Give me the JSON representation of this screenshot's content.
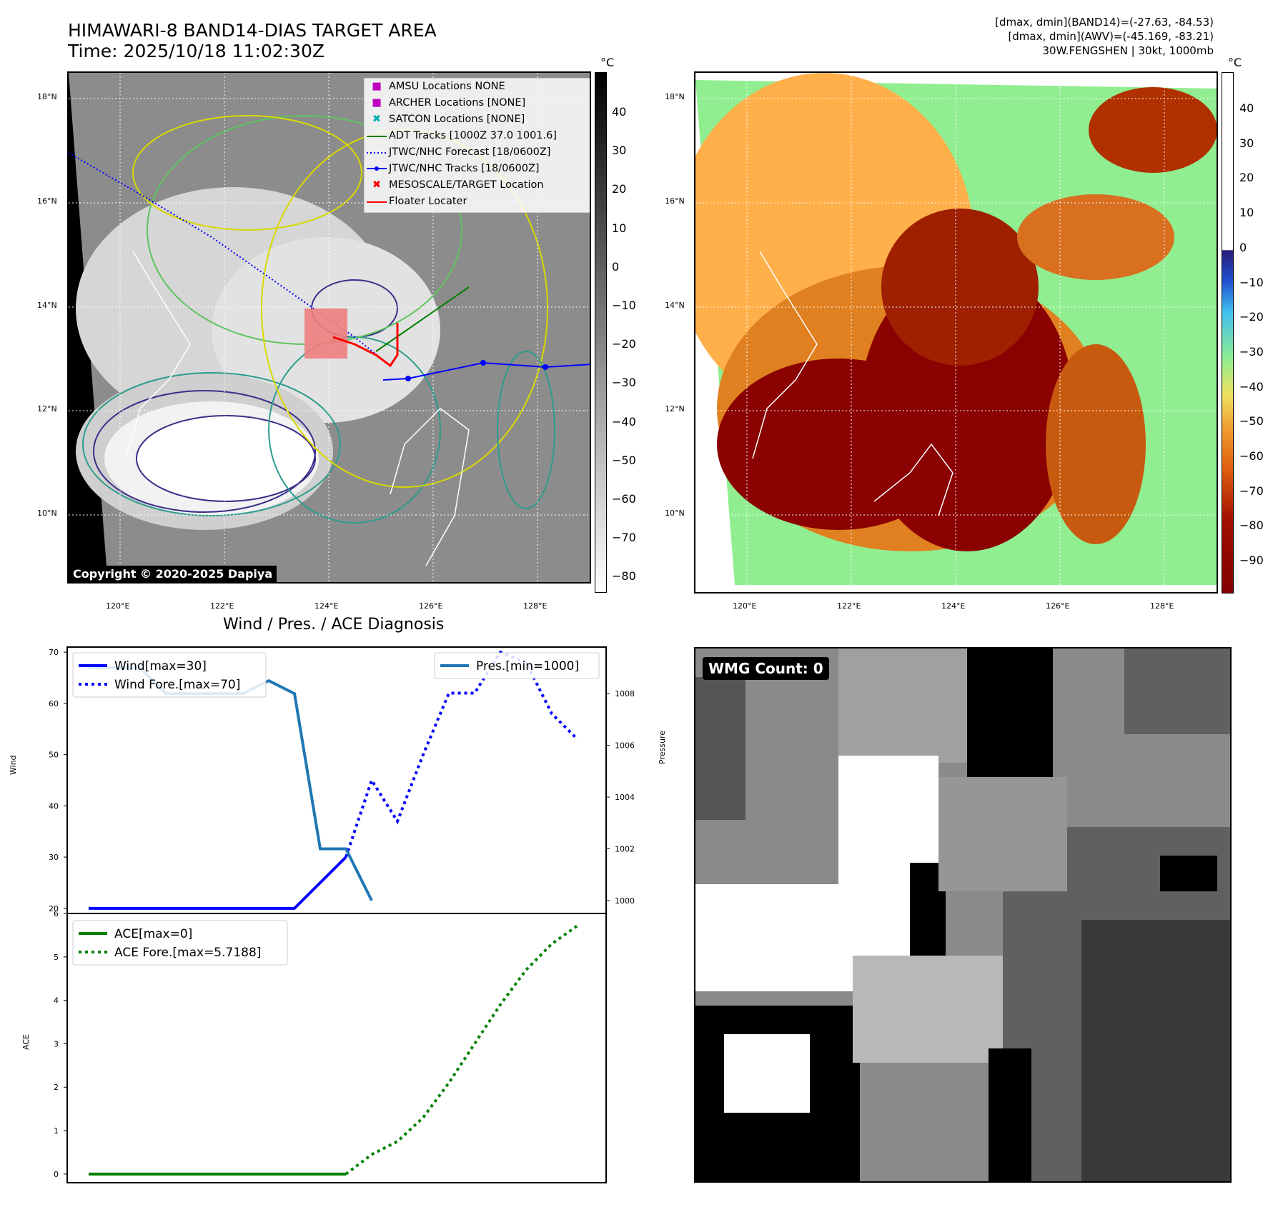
{
  "header": {
    "title_line1": "HIMAWARI-8 BAND14-DIAS TARGET AREA",
    "title_line2": "Time: 2025/10/18 11:02:30Z",
    "info_line1": "[dmax, dmin](BAND14)=(-27.63, -84.53)",
    "info_line2": "[dmax, dmin](AWV)=(-45.169, -83.21)",
    "info_line3": "30W.FENGSHEN | 30kt, 1000mb"
  },
  "copyright": "Copyright © 2020-2025 Dapiya",
  "map": {
    "lat_labels": [
      "18°N",
      "16°N",
      "14°N",
      "12°N",
      "10°N"
    ],
    "lon_labels": [
      "120°E",
      "122°E",
      "124°E",
      "126°E",
      "128°E"
    ],
    "legend": [
      {
        "label": "AMSU Locations NONE",
        "marker": "square",
        "color": "#c000c0"
      },
      {
        "label": "ARCHER Locations [NONE]",
        "marker": "square",
        "color": "#c000c0"
      },
      {
        "label": "SATCON Locations [NONE]",
        "marker": "x",
        "color": "#00b0b0"
      },
      {
        "label": "ADT Tracks [1000Z 37.0 1001.6]",
        "marker": "line",
        "color": "#008000"
      },
      {
        "label": "JTWC/NHC Forecast [18/0600Z]",
        "marker": "dotted",
        "color": "#0000ff"
      },
      {
        "label": "JTWC/NHC Tracks [18/0600Z]",
        "marker": "line-dot",
        "color": "#0000ff"
      },
      {
        "label": "MESOSCALE/TARGET Location",
        "marker": "x",
        "color": "#ff0000"
      },
      {
        "label": "Floater Locater",
        "marker": "line",
        "color": "#ff0000"
      }
    ],
    "unit": "°C",
    "colorbar1_ticks": [
      "40",
      "30",
      "20",
      "10",
      "0",
      "−10",
      "−20",
      "−30",
      "−40",
      "−50",
      "−60",
      "−70",
      "−80"
    ],
    "colorbar2_ticks": [
      "40",
      "30",
      "20",
      "10",
      "0",
      "−10",
      "−20",
      "−30",
      "−40",
      "−50",
      "−60",
      "−70",
      "−80",
      "−90"
    ]
  },
  "chart_data": [
    {
      "type": "line",
      "title": "Wind / Pres. / ACE Diagnosis",
      "ylabel": "Wind",
      "ylabel2": "Pressure",
      "ylim": [
        19,
        71
      ],
      "ylim2": [
        999.5,
        1009.8
      ],
      "yticks": [
        "70",
        "60",
        "50",
        "40",
        "30",
        "20"
      ],
      "yticks2": [
        "1008",
        "1006",
        "1004",
        "1002",
        "1000"
      ],
      "x": [
        0,
        1,
        2,
        3,
        4,
        5,
        6,
        7,
        8,
        9,
        10,
        11,
        12,
        13,
        14,
        15,
        16,
        17,
        18,
        19
      ],
      "series": [
        {
          "name": "Wind[max=30]",
          "style": "solid",
          "color": "#0000ff",
          "values": [
            20,
            20,
            20,
            20,
            20,
            20,
            20,
            20,
            20,
            25,
            30,
            null,
            null,
            null,
            null,
            null,
            null,
            null,
            null,
            null
          ]
        },
        {
          "name": "Wind Fore.[max=70]",
          "style": "dotted",
          "color": "#0000ff",
          "values": [
            null,
            null,
            null,
            null,
            null,
            null,
            null,
            null,
            null,
            null,
            30,
            45,
            37,
            50,
            62,
            62,
            70,
            68,
            58,
            53
          ]
        },
        {
          "name": "Pres.[min=1000]",
          "style": "solid",
          "color": "#1f77b4",
          "axis": "right",
          "values": [
            1009,
            1009,
            1009,
            1008,
            1008,
            1008,
            1008,
            1008.5,
            1008,
            1002,
            1002,
            1000,
            null,
            null,
            null,
            null,
            null,
            null,
            null,
            null
          ]
        }
      ]
    },
    {
      "type": "line",
      "ylabel": "ACE",
      "ylim": [
        -0.2,
        6
      ],
      "yticks": [
        "6",
        "5",
        "4",
        "3",
        "2",
        "1",
        "0"
      ],
      "x": [
        0,
        1,
        2,
        3,
        4,
        5,
        6,
        7,
        8,
        9,
        10,
        11,
        12,
        13,
        14,
        15,
        16,
        17,
        18,
        19
      ],
      "series": [
        {
          "name": "ACE[max=0]",
          "style": "solid",
          "color": "#008000",
          "values": [
            0,
            0,
            0,
            0,
            0,
            0,
            0,
            0,
            0,
            0,
            0,
            null,
            null,
            null,
            null,
            null,
            null,
            null,
            null,
            null
          ]
        },
        {
          "name": "ACE Fore.[max=5.7188]",
          "style": "dotted",
          "color": "#008000",
          "values": [
            null,
            null,
            null,
            null,
            null,
            null,
            null,
            null,
            null,
            null,
            0,
            0.45,
            0.75,
            1.3,
            2.1,
            3.0,
            3.9,
            4.7,
            5.3,
            5.72
          ]
        }
      ]
    }
  ],
  "wmg": {
    "label": "WMG Count: 0"
  }
}
